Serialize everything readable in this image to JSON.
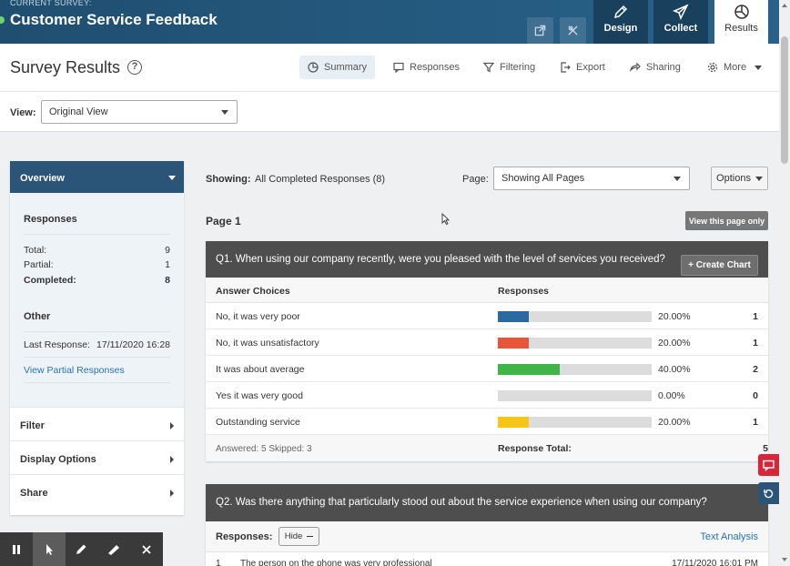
{
  "topbar": {
    "current_label": "CURRENT SURVEY:",
    "survey_title": "Customer Service Feedback",
    "tabs": [
      {
        "label": "Design",
        "icon": "pencil-icon"
      },
      {
        "label": "Collect",
        "icon": "paper-plane-icon"
      },
      {
        "label": "Results",
        "icon": "pie-chart-icon"
      }
    ]
  },
  "subheader": {
    "title": "Survey Results",
    "help": "?",
    "nav": [
      {
        "label": "Summary",
        "icon": "pie-chart-icon"
      },
      {
        "label": "Responses",
        "icon": "speech-bubble-icon"
      },
      {
        "label": "Filtering",
        "icon": "funnel-icon"
      },
      {
        "label": "Export",
        "icon": "export-icon"
      },
      {
        "label": "Sharing",
        "icon": "share-icon"
      },
      {
        "label": "More",
        "icon": "gear-icon"
      }
    ]
  },
  "view": {
    "label": "View:",
    "selected": "Original View"
  },
  "sidebar": {
    "overview": "Overview",
    "responses_title": "Responses",
    "total_label": "Total:",
    "total": "9",
    "partial_label": "Partial:",
    "partial": "1",
    "completed_label": "Completed:",
    "completed": "8",
    "other_title": "Other",
    "last_response_label": "Last Response:",
    "last_response": "17/11/2020 16:28",
    "view_partial": "View Partial Responses",
    "items": [
      "Filter",
      "Display Options",
      "Share"
    ]
  },
  "main": {
    "showing_label": "Showing:",
    "showing_value": "All Completed Responses (8)",
    "page_label": "Page:",
    "page_selected": "Showing All Pages",
    "options": "Options",
    "page_title": "Page 1",
    "view_page_only": "View this page only"
  },
  "q1": {
    "question": "Q1. When using our company recently, were you pleased with the level of services you received?",
    "create_chart": "+ Create Chart",
    "col_choices": "Answer Choices",
    "col_responses": "Responses",
    "rows": [
      {
        "choice": "No, it was very poor",
        "percent": "20.00%",
        "fraction": 0.2,
        "count": "1",
        "color": "#2a6aa0"
      },
      {
        "choice": "No, it was unsatisfactory",
        "percent": "20.00%",
        "fraction": 0.2,
        "count": "1",
        "color": "#e8563a"
      },
      {
        "choice": "It was about average",
        "percent": "40.00%",
        "fraction": 0.4,
        "count": "2",
        "color": "#3fb548"
      },
      {
        "choice": "Yes it was very good",
        "percent": "0.00%",
        "fraction": 0,
        "count": "0",
        "color": "#8c5cc7"
      },
      {
        "choice": "Outstanding service",
        "percent": "20.00%",
        "fraction": 0.2,
        "count": "1",
        "color": "#f5c518"
      }
    ],
    "answered_skipped": "Answered: 5   Skipped: 3",
    "response_total_label": "Response Total:",
    "response_total": "5"
  },
  "q2": {
    "question": "Q2. Was there anything that particularly stood out about the service experience when using our company?",
    "responses_label": "Responses:",
    "hide": "Hide",
    "text_analysis": "Text Analysis",
    "first_response": {
      "num": "1",
      "text": "The person on the phone was very professional",
      "timestamp": "17/11/2020 16:01 PM"
    }
  },
  "colors": {
    "accent": "#2a5478",
    "topbar": "#1f4e70",
    "link": "#2673b6",
    "float_red": "#d9253a",
    "float_blue": "#2a5478"
  }
}
